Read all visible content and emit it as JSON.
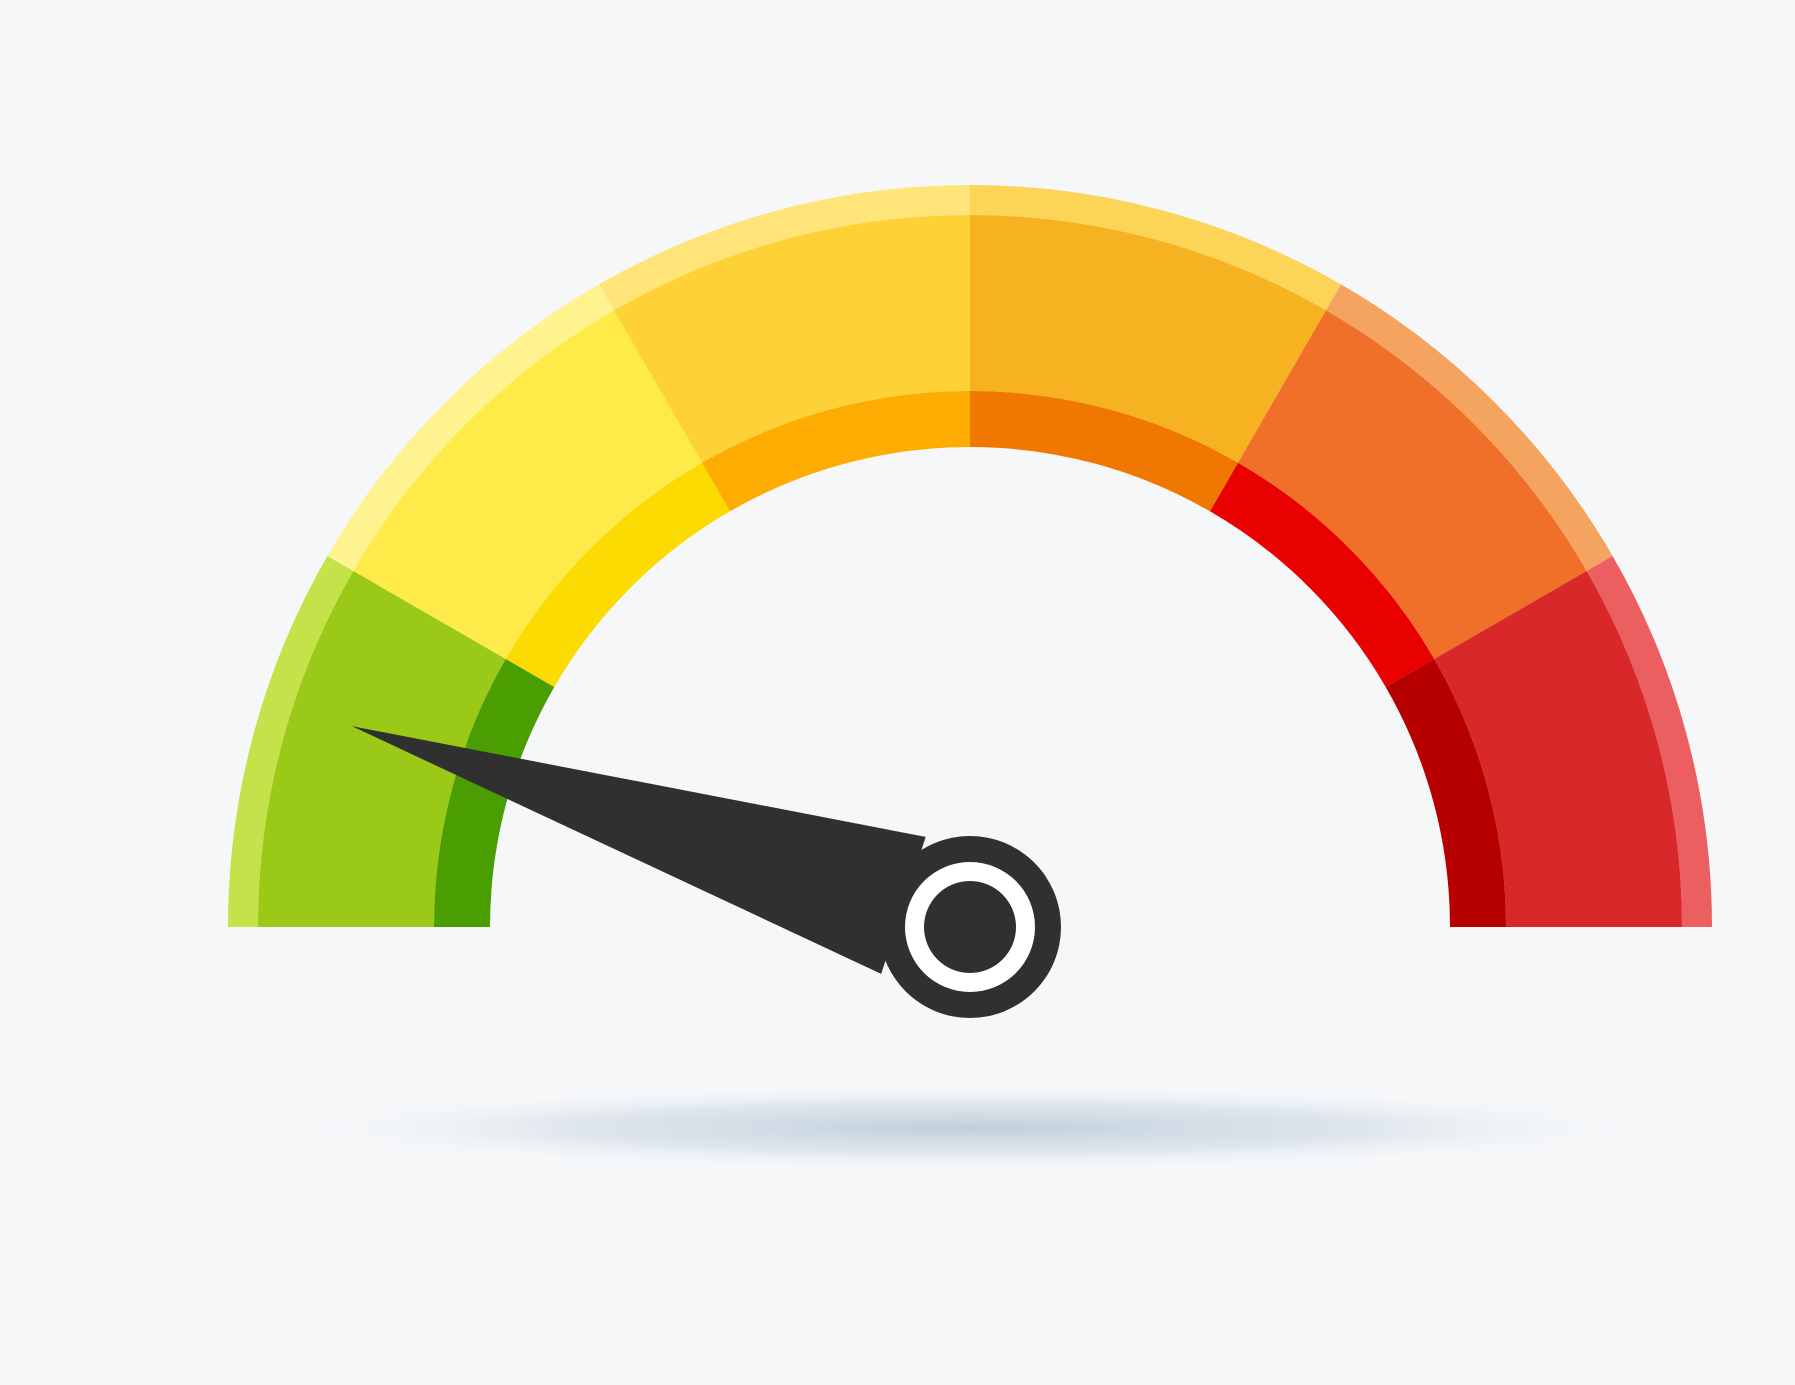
{
  "gauge": {
    "segment_count": 6,
    "needle_value": 0.1,
    "colors": {
      "background": "#f5f7f9",
      "shadow": "#b9cad8",
      "needle": "#303030",
      "hub_ring": "#ffffff",
      "segments": [
        {
          "outer": "#9bc917",
          "inner": "#4b9e02",
          "rim": "#c5e24a"
        },
        {
          "outer": "#feeb49",
          "inner": "#fbdb01",
          "rim": "#fff38f"
        },
        {
          "outer": "#fed237",
          "inner": "#feac02",
          "rim": "#ffe47a"
        },
        {
          "outer": "#f6b221",
          "inner": "#f07800",
          "rim": "#fbd458"
        },
        {
          "outer": "#f06f29",
          "inner": "#e90101",
          "rim": "#f5a45f"
        },
        {
          "outer": "#d9282a",
          "inner": "#b60000",
          "rim": "#ec5f60"
        }
      ]
    }
  }
}
